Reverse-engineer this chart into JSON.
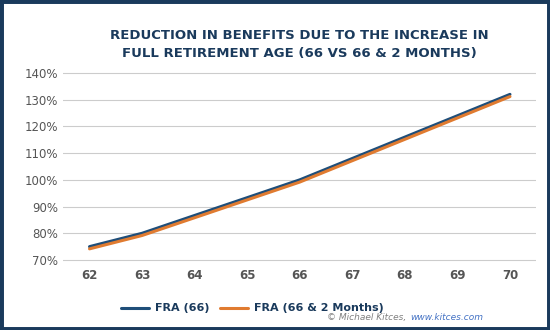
{
  "title_line1": "REDUCTION IN BENEFITS DUE TO THE INCREASE IN",
  "title_line2": "FULL RETIREMENT AGE (66 VS 66 & 2 MONTHS)",
  "x_values": [
    62,
    63,
    64,
    65,
    66,
    67,
    68,
    69,
    70
  ],
  "fra66_values": [
    0.75,
    0.8,
    0.8667,
    0.9333,
    1.0,
    1.08,
    1.16,
    1.24,
    1.32
  ],
  "fra66_2m_values": [
    0.7417,
    0.7917,
    0.8583,
    0.925,
    0.9917,
    1.0717,
    1.1517,
    1.2317,
    1.3117
  ],
  "fra66_color": "#1f4e79",
  "fra66_2m_color": "#e07b30",
  "legend_fra66": "FRA (66)",
  "legend_fra66_2m": "FRA (66 & 2 Months)",
  "x_ticks": [
    62,
    63,
    64,
    65,
    66,
    67,
    68,
    69,
    70
  ],
  "y_ticks": [
    0.7,
    0.8,
    0.9,
    1.0,
    1.1,
    1.2,
    1.3,
    1.4
  ],
  "ylim": [
    0.685,
    1.42
  ],
  "xlim": [
    61.5,
    70.5
  ],
  "background_color": "#ffffff",
  "border_color": "#1a3a5c",
  "grid_color": "#cccccc",
  "title_color": "#1a3a5c",
  "watermark_text": "© Michael Kitces, ",
  "watermark_link": "www.kitces.com",
  "watermark_color": "#808080",
  "watermark_link_color": "#4472c4",
  "line_width": 2.2,
  "tick_label_color": "#555555",
  "tick_label_size": 8.5
}
